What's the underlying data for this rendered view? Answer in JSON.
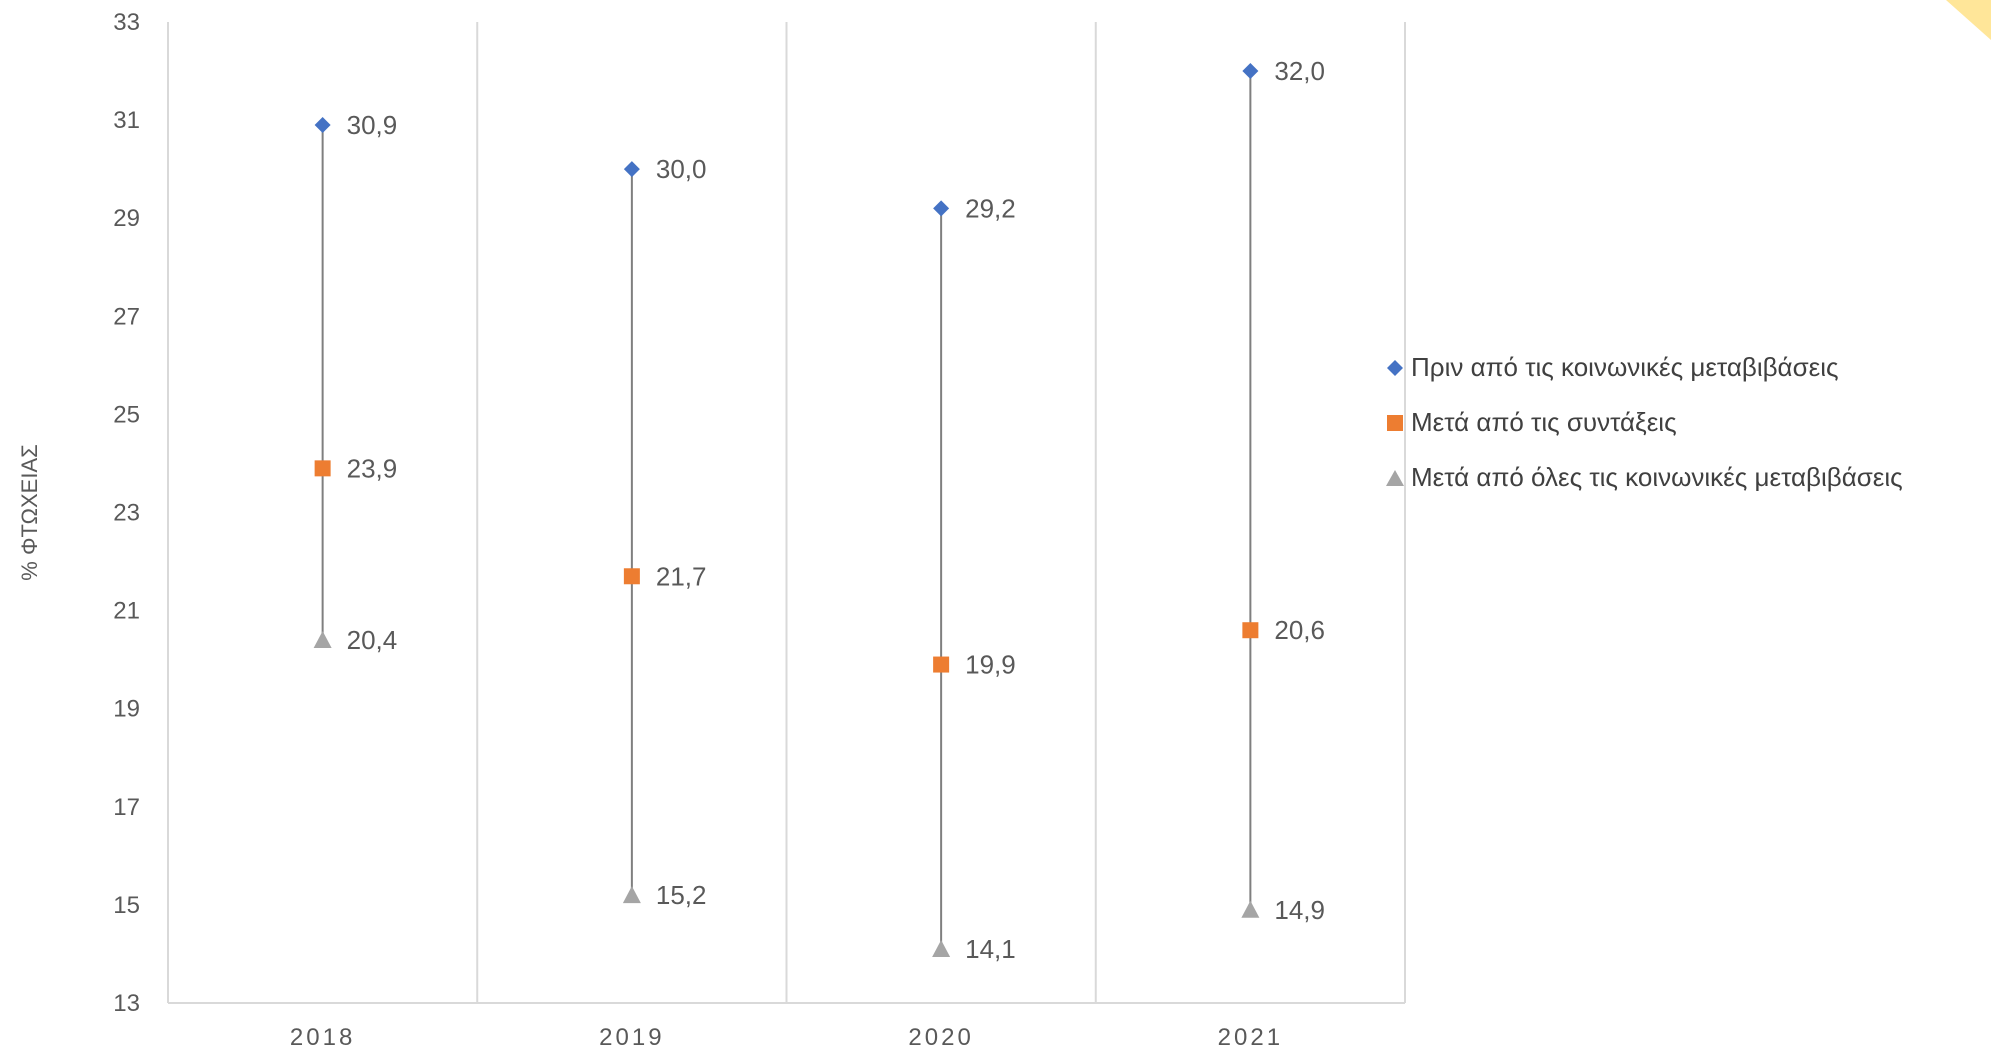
{
  "chart_data": {
    "type": "line",
    "ylabel": "% ΦΤΩΧΕΙΑΣ",
    "xlabel": "",
    "ylim": [
      13,
      33
    ],
    "yticks": [
      "13",
      "15",
      "17",
      "19",
      "21",
      "23",
      "25",
      "27",
      "29",
      "31",
      "33"
    ],
    "categories": [
      "2018",
      "2019",
      "2020",
      "2021"
    ],
    "series": [
      {
        "name": "Πριν από τις κοινωνικές μεταβιβάσεις",
        "marker": "diamond",
        "color": "#4472C4",
        "values": [
          30.9,
          30.0,
          29.2,
          32.0
        ],
        "labels": [
          "30,9",
          "30,0",
          "29,2",
          "32,0"
        ]
      },
      {
        "name": "Μετά από τις συντάξεις",
        "marker": "square",
        "color": "#ED7D31",
        "values": [
          23.9,
          21.7,
          19.9,
          20.6
        ],
        "labels": [
          "23,9",
          "21,7",
          "19,9",
          "20,6"
        ]
      },
      {
        "name": "Μετά από όλες τις κοινωνικές μεταβιβάσεις",
        "marker": "triangle",
        "color": "#A5A5A5",
        "values": [
          20.4,
          15.2,
          14.1,
          14.9
        ],
        "labels": [
          "20,4",
          "15,2",
          "14,1",
          "14,9"
        ]
      }
    ],
    "high_low_lines": true,
    "legend_position": "right",
    "grid": "vertical category separators"
  }
}
